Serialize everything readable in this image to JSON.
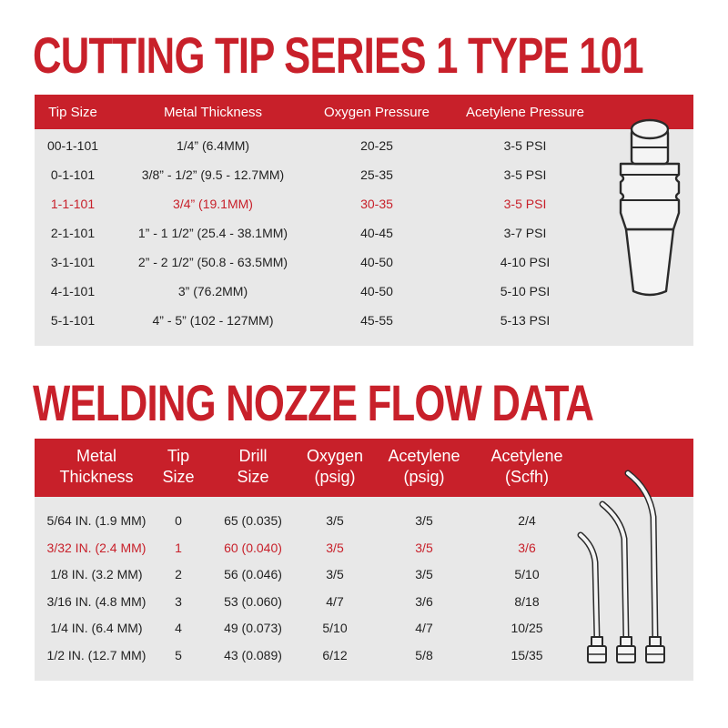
{
  "cutting": {
    "title": "CUTTING TIP SERIES 1 TYPE 101",
    "headers": [
      "Tip Size",
      "Metal Thickness",
      "Oxygen Pressure",
      "Acetylene Pressure"
    ],
    "rows": [
      [
        "00-1-101",
        "1/4” (6.4MM)",
        "20-25",
        "3-5 PSI"
      ],
      [
        "0-1-101",
        "3/8” - 1/2” (9.5 - 12.7MM)",
        "25-35",
        "3-5 PSI"
      ],
      [
        "1-1-101",
        "3/4” (19.1MM)",
        "30-35",
        "3-5 PSI"
      ],
      [
        "2-1-101",
        "1” - 1 1/2” (25.4 - 38.1MM)",
        "40-45",
        "3-7 PSI"
      ],
      [
        "3-1-101",
        "2” - 2 1/2” (50.8 - 63.5MM)",
        "40-50",
        "4-10 PSI"
      ],
      [
        "4-1-101",
        "3” (76.2MM)",
        "40-50",
        "5-10 PSI"
      ],
      [
        "5-1-101",
        "4” - 5” (102 - 127MM)",
        "45-55",
        "5-13 PSI"
      ]
    ],
    "highlight_row": 2
  },
  "welding": {
    "title": "WELDING NOZZE FLOW DATA",
    "headers": [
      [
        "Metal",
        "Thickness"
      ],
      [
        "Tip",
        "Size"
      ],
      [
        "Drill",
        "Size"
      ],
      [
        "Oxygen",
        "(psig)"
      ],
      [
        "Acetylene",
        "(psig)"
      ],
      [
        "Acetylene",
        "(Scfh)"
      ]
    ],
    "rows": [
      [
        "5/64 IN. (1.9 MM)",
        "0",
        "65 (0.035)",
        "3/5",
        "3/5",
        "2/4"
      ],
      [
        "3/32 IN. (2.4 MM)",
        "1",
        "60 (0.040)",
        "3/5",
        "3/5",
        "3/6"
      ],
      [
        "1/8 IN. (3.2 MM)",
        "2",
        "56 (0.046)",
        "3/5",
        "3/5",
        "5/10"
      ],
      [
        "3/16 IN. (4.8 MM)",
        "3",
        "53 (0.060)",
        "4/7",
        "3/6",
        "8/18"
      ],
      [
        "1/4 IN. (6.4 MM)",
        "4",
        "49 (0.073)",
        "5/10",
        "4/7",
        "10/25"
      ],
      [
        "1/2 IN. (12.7 MM)",
        "5",
        "43 (0.089)",
        "6/12",
        "5/8",
        "15/35"
      ]
    ],
    "highlight_row": 1
  },
  "colors": {
    "accent": "#c8202a",
    "panel": "#e8e8e8",
    "text": "#222222"
  },
  "icons": [
    "cutting-tip-icon",
    "welding-nozzle-icon"
  ]
}
